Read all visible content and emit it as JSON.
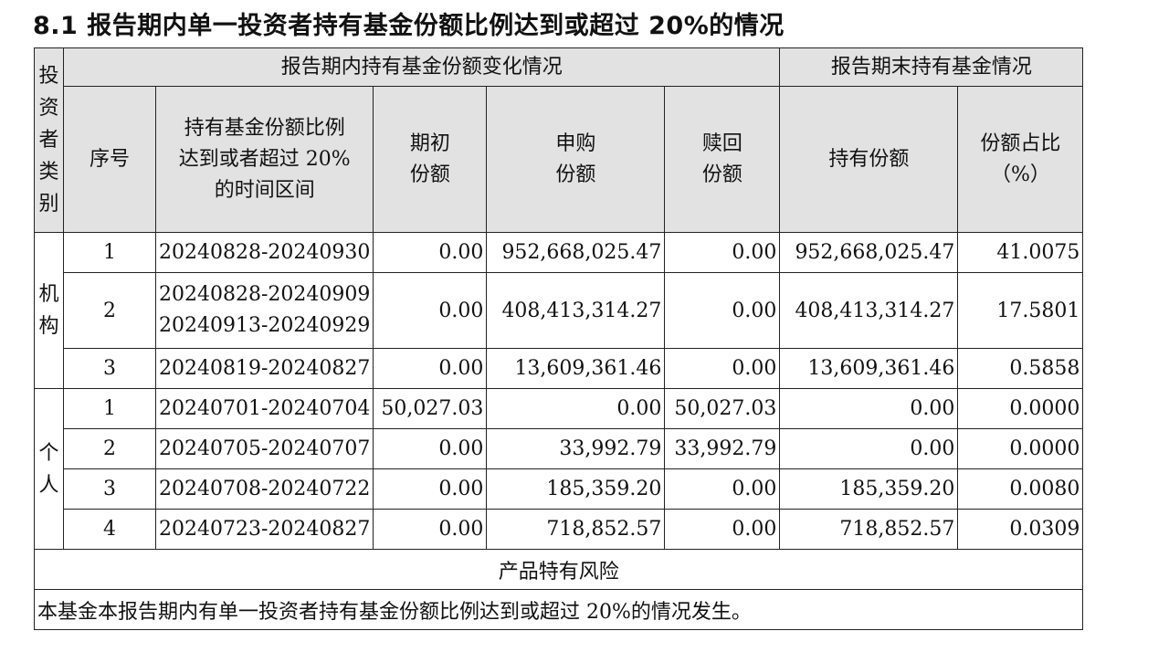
{
  "title": "8.1 报告期内单一投资者持有基金份额比例达到或超过 20%的情况",
  "header": {
    "investor_type": [
      "投",
      "资",
      "者",
      "类",
      "别"
    ],
    "change_group": "报告期内持有基金份额变化情况",
    "end_group": "报告期末持有基金情况",
    "seq": "序号",
    "period": [
      "持有基金份额比例",
      "达到或者超过 20%",
      "的时间区间"
    ],
    "begin_share": [
      "期初",
      "份额"
    ],
    "purchase_share": [
      "申购",
      "份额"
    ],
    "redeem_share": [
      "赎回",
      "份额"
    ],
    "hold_share": "持有份额",
    "ratio": [
      "份额占比",
      "（%）"
    ]
  },
  "groups": [
    {
      "type_chars": [
        "机",
        "构"
      ],
      "rows": [
        {
          "seq": "1",
          "periods": [
            "20240828-20240930"
          ],
          "begin": "0.00",
          "purchase": "952,668,025.47",
          "redeem": "0.00",
          "hold": "952,668,025.47",
          "ratio": "41.0075"
        },
        {
          "seq": "2",
          "periods": [
            "20240828-20240909",
            "20240913-20240929"
          ],
          "begin": "0.00",
          "purchase": "408,413,314.27",
          "redeem": "0.00",
          "hold": "408,413,314.27",
          "ratio": "17.5801"
        },
        {
          "seq": "3",
          "periods": [
            "20240819-20240827"
          ],
          "begin": "0.00",
          "purchase": "13,609,361.46",
          "redeem": "0.00",
          "hold": "13,609,361.46",
          "ratio": "0.5858"
        }
      ]
    },
    {
      "type_chars": [
        "个",
        "人"
      ],
      "rows": [
        {
          "seq": "1",
          "periods": [
            "20240701-20240704"
          ],
          "begin": "50,027.03",
          "purchase": "0.00",
          "redeem": "50,027.03",
          "hold": "0.00",
          "ratio": "0.0000"
        },
        {
          "seq": "2",
          "periods": [
            "20240705-20240707"
          ],
          "begin": "0.00",
          "purchase": "33,992.79",
          "redeem": "33,992.79",
          "hold": "0.00",
          "ratio": "0.0000"
        },
        {
          "seq": "3",
          "periods": [
            "20240708-20240722"
          ],
          "begin": "0.00",
          "purchase": "185,359.20",
          "redeem": "0.00",
          "hold": "185,359.20",
          "ratio": "0.0080"
        },
        {
          "seq": "4",
          "periods": [
            "20240723-20240827"
          ],
          "begin": "0.00",
          "purchase": "718,852.57",
          "redeem": "0.00",
          "hold": "718,852.57",
          "ratio": "0.0309"
        }
      ]
    }
  ],
  "risk_heading": "产品特有风险",
  "risk_text": "本基金本报告期内有单一投资者持有基金份额比例达到或超过 20%的情况发生。"
}
